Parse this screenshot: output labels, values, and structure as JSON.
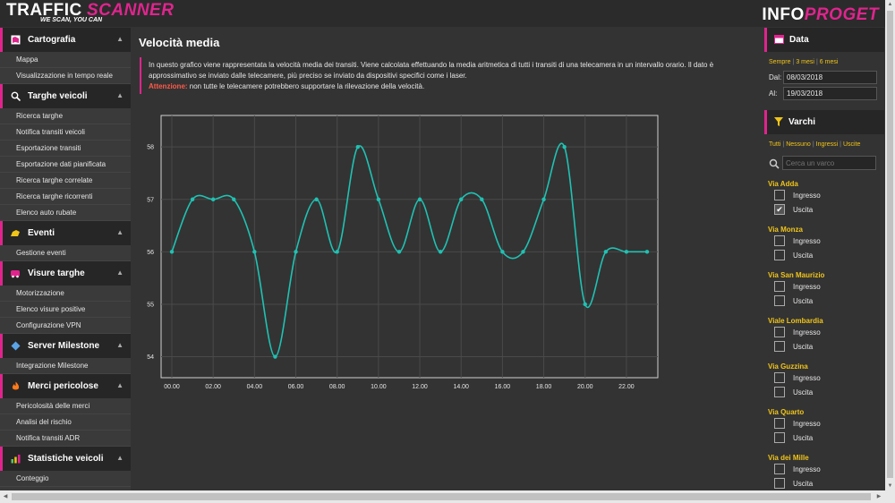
{
  "header": {
    "logo_left_part1": "TRAFFIC",
    "logo_left_part2": "SCANNER",
    "logo_tagline": "WE SCAN, YOU CAN",
    "logo_right_part1": "INFO",
    "logo_right_part2": "PROGET"
  },
  "sidebar": {
    "sections": [
      {
        "title": "Cartografia",
        "icon": "map-icon",
        "items": [
          "Mappa",
          "Visualizzazione in tempo reale"
        ]
      },
      {
        "title": "Targhe veicoli",
        "icon": "search-icon",
        "items": [
          "Ricerca targhe",
          "Notifica transiti veicoli",
          "Esportazione transiti",
          "Esportazione dati pianificata",
          "Ricerca targhe correlate",
          "Ricerca targhe ricorrenti",
          "Elenco auto rubate"
        ]
      },
      {
        "title": "Eventi",
        "icon": "bell-icon",
        "items": [
          "Gestione eventi"
        ]
      },
      {
        "title": "Visure targhe",
        "icon": "car-icon",
        "items": [
          "Motorizzazione",
          "Elenco visure positive",
          "Configurazione VPN"
        ]
      },
      {
        "title": "Server Milestone",
        "icon": "diamond-icon",
        "items": [
          "Integrazione Milestone"
        ]
      },
      {
        "title": "Merci pericolose",
        "icon": "flame-icon",
        "items": [
          "Pericolosità delle merci",
          "Analisi del rischio",
          "Notifica transiti ADR"
        ]
      },
      {
        "title": "Statistiche veicoli",
        "icon": "bar-chart-icon",
        "items": [
          "Conteggio"
        ]
      }
    ]
  },
  "main": {
    "title": "Velocità media",
    "info_text": "In questo grafico viene rappresentata la velocità media dei transiti. Viene calcolata effettuando la media aritmetica di tutti i transiti di una telecamera in un intervallo orario. Il dato è approssimativo se inviato dalle telecamere, più preciso se inviato da dispositivi specifici come i laser.",
    "warning_label": "Attenzione:",
    "warning_text": " non tutte le telecamere potrebbero supportare la rilevazione della velocità."
  },
  "chart_data": {
    "type": "line",
    "x": [
      "00.00",
      "01.00",
      "02.00",
      "03.00",
      "04.00",
      "05.00",
      "06.00",
      "07.00",
      "08.00",
      "09.00",
      "10.00",
      "11.00",
      "12.00",
      "13.00",
      "14.00",
      "15.00",
      "16.00",
      "17.00",
      "18.00",
      "19.00",
      "20.00",
      "21.00",
      "22.00",
      "23.00"
    ],
    "x_tick_labels": [
      "00.00",
      "02.00",
      "04.00",
      "06.00",
      "08.00",
      "10.00",
      "12.00",
      "14.00",
      "16.00",
      "18.00",
      "20.00",
      "22.00"
    ],
    "values": [
      56,
      57,
      57,
      57,
      56,
      54,
      56,
      57,
      56,
      58,
      57,
      56,
      57,
      56,
      57,
      57,
      56,
      56,
      57,
      58,
      55,
      56,
      56,
      56
    ],
    "y_ticks": [
      54,
      55,
      56,
      57,
      58
    ],
    "ylim": [
      53.6,
      58.6
    ],
    "grid": true,
    "line_color": "#1fc2b3"
  },
  "rightpanel": {
    "date_title": "Data",
    "date_presets": [
      "Sempre",
      "3 mesi",
      "6 mesi"
    ],
    "from_label": "Dal:",
    "from_value": "08/03/2018",
    "to_label": "Al:",
    "to_value": "19/03/2018",
    "varchi_title": "Varchi",
    "varchi_filters": [
      "Tutti",
      "Nessuno",
      "Ingressi",
      "Uscite"
    ],
    "search_placeholder": "Cerca un varco",
    "in_label": "Ingresso",
    "out_label": "Uscita",
    "varchi": [
      {
        "name": "Via Adda",
        "ingresso": false,
        "uscita": true
      },
      {
        "name": "Via Monza",
        "ingresso": false,
        "uscita": false
      },
      {
        "name": "Via San Maurizio",
        "ingresso": false,
        "uscita": false
      },
      {
        "name": "Viale Lombardia",
        "ingresso": false,
        "uscita": false
      },
      {
        "name": "Via Guzzina",
        "ingresso": false,
        "uscita": false
      },
      {
        "name": "Via Quarto",
        "ingresso": false,
        "uscita": false
      },
      {
        "name": "Via dei Mille",
        "ingresso": false,
        "uscita": false
      }
    ]
  },
  "colors": {
    "accent": "#e0248e",
    "yellow": "#f0c419",
    "line": "#1fc2b3",
    "background": "#333333"
  }
}
